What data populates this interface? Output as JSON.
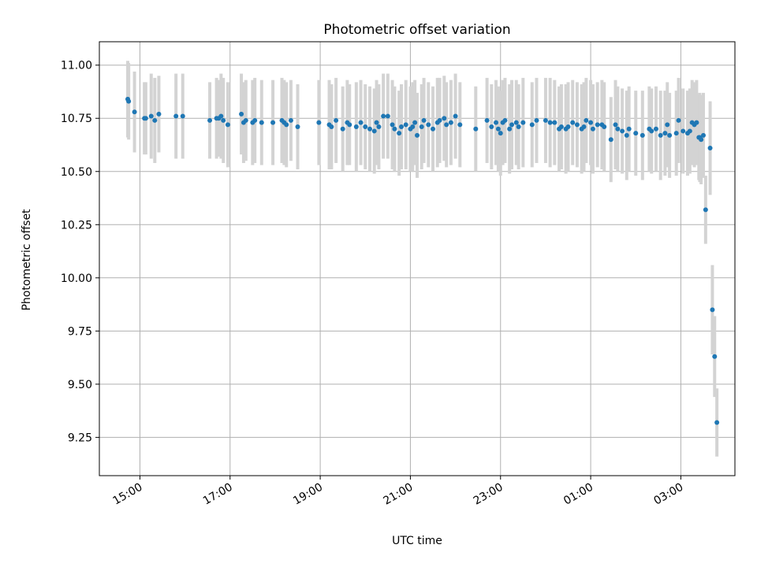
{
  "chart_data": {
    "type": "scatter",
    "title": "Photometric offset variation",
    "xlabel": "UTC time",
    "ylabel": "Photometric offset",
    "grid": true,
    "legend": "none",
    "x_ticks": [
      "15:00",
      "17:00",
      "19:00",
      "21:00",
      "23:00",
      "01:00",
      "03:00"
    ],
    "x_tick_values": [
      0,
      2,
      4,
      6,
      8,
      10,
      12
    ],
    "xlim": [
      -0.9,
      13.2
    ],
    "y_ticks": [
      "9.25",
      "9.50",
      "9.75",
      "10.00",
      "10.25",
      "10.50",
      "10.75",
      "11.00"
    ],
    "y_tick_values": [
      9.25,
      9.5,
      9.75,
      10.0,
      10.25,
      10.5,
      10.75,
      11.0
    ],
    "ylim": [
      9.07,
      11.11
    ],
    "colors": {
      "point": "#1f77b4",
      "errorbar": "#d3d3d3"
    },
    "series": [
      {
        "x": [
          -0.27,
          -0.25,
          -0.12,
          0.1,
          0.13,
          0.25,
          0.33,
          0.42,
          0.8,
          0.95,
          1.55,
          1.7,
          1.75,
          1.8,
          1.85,
          1.95,
          2.25,
          2.3,
          2.35,
          2.5,
          2.55,
          2.7,
          2.95,
          3.15,
          3.2,
          3.25,
          3.35,
          3.5,
          3.97,
          4.2,
          4.25,
          4.35,
          4.5,
          4.6,
          4.65,
          4.8,
          4.9,
          5.0,
          5.1,
          5.2,
          5.25,
          5.3,
          5.4,
          5.5,
          5.6,
          5.65,
          5.75,
          5.8,
          5.9,
          6.0,
          6.05,
          6.1,
          6.15,
          6.25,
          6.3,
          6.4,
          6.5,
          6.6,
          6.65,
          6.75,
          6.8,
          6.9,
          7.0,
          7.1,
          7.45,
          7.7,
          7.8,
          7.9,
          7.95,
          8.0,
          8.05,
          8.1,
          8.2,
          8.25,
          8.35,
          8.4,
          8.5,
          8.7,
          8.8,
          9.0,
          9.1,
          9.2,
          9.3,
          9.35,
          9.45,
          9.5,
          9.6,
          9.7,
          9.8,
          9.85,
          9.9,
          10.0,
          10.05,
          10.15,
          10.25,
          10.3,
          10.45,
          10.55,
          10.6,
          10.7,
          10.8,
          10.85,
          11.0,
          11.15,
          11.3,
          11.35,
          11.45,
          11.55,
          11.65,
          11.7,
          11.75,
          11.9,
          11.95,
          12.05,
          12.15,
          12.2,
          12.25,
          12.3,
          12.35,
          12.4,
          12.42,
          12.45,
          12.5,
          12.65
        ],
        "y": [
          10.84,
          10.83,
          10.78,
          10.75,
          10.75,
          10.76,
          10.74,
          10.77,
          10.76,
          10.76,
          10.74,
          10.75,
          10.75,
          10.76,
          10.74,
          10.72,
          10.77,
          10.73,
          10.74,
          10.73,
          10.74,
          10.73,
          10.73,
          10.74,
          10.73,
          10.72,
          10.74,
          10.71,
          10.73,
          10.72,
          10.71,
          10.74,
          10.7,
          10.73,
          10.72,
          10.71,
          10.73,
          10.71,
          10.7,
          10.69,
          10.73,
          10.71,
          10.76,
          10.76,
          10.72,
          10.7,
          10.68,
          10.71,
          10.72,
          10.7,
          10.71,
          10.73,
          10.67,
          10.71,
          10.74,
          10.72,
          10.7,
          10.73,
          10.74,
          10.75,
          10.72,
          10.73,
          10.76,
          10.72,
          10.7,
          10.74,
          10.71,
          10.73,
          10.7,
          10.68,
          10.73,
          10.74,
          10.7,
          10.72,
          10.73,
          10.71,
          10.73,
          10.72,
          10.74,
          10.74,
          10.73,
          10.73,
          10.7,
          10.71,
          10.7,
          10.71,
          10.73,
          10.72,
          10.7,
          10.71,
          10.74,
          10.73,
          10.7,
          10.72,
          10.72,
          10.71,
          10.65,
          10.72,
          10.7,
          10.69,
          10.67,
          10.7,
          10.68,
          10.67,
          10.7,
          10.69,
          10.7,
          10.67,
          10.68,
          10.72,
          10.67,
          10.68,
          10.74,
          10.69,
          10.68,
          10.69,
          10.73,
          10.72,
          10.73,
          10.66,
          10.66,
          10.65,
          10.67,
          10.61
        ],
        "err": [
          0.18,
          0.18,
          0.19,
          0.17,
          0.17,
          0.2,
          0.2,
          0.18,
          0.2,
          0.2,
          0.18,
          0.19,
          0.18,
          0.2,
          0.2,
          0.2,
          0.19,
          0.19,
          0.19,
          0.2,
          0.2,
          0.2,
          0.2,
          0.2,
          0.2,
          0.2,
          0.19,
          0.2,
          0.2,
          0.21,
          0.2,
          0.2,
          0.2,
          0.2,
          0.19,
          0.21,
          0.2,
          0.2,
          0.2,
          0.2,
          0.2,
          0.2,
          0.2,
          0.2,
          0.21,
          0.2,
          0.2,
          0.2,
          0.21,
          0.2,
          0.21,
          0.2,
          0.2,
          0.2,
          0.2,
          0.2,
          0.2,
          0.21,
          0.2,
          0.2,
          0.2,
          0.2,
          0.2,
          0.2,
          0.2,
          0.2,
          0.2,
          0.2,
          0.2,
          0.2,
          0.2,
          0.2,
          0.21,
          0.21,
          0.2,
          0.2,
          0.21,
          0.2,
          0.2,
          0.2,
          0.21,
          0.2,
          0.2,
          0.2,
          0.21,
          0.21,
          0.2,
          0.2,
          0.21,
          0.21,
          0.2,
          0.2,
          0.21,
          0.2,
          0.21,
          0.21,
          0.2,
          0.21,
          0.2,
          0.2,
          0.21,
          0.2,
          0.2,
          0.21,
          0.2,
          0.2,
          0.2,
          0.21,
          0.2,
          0.2,
          0.2,
          0.2,
          0.2,
          0.2,
          0.2,
          0.2,
          0.2,
          0.2,
          0.2,
          0.2,
          0.21,
          0.21,
          0.2,
          0.22
        ]
      },
      {
        "x": [
          12.55,
          12.7,
          12.75,
          12.8
        ],
        "y": [
          10.32,
          9.85,
          9.63,
          9.32
        ],
        "err": [
          0.16,
          0.21,
          0.19,
          0.16
        ]
      }
    ]
  }
}
